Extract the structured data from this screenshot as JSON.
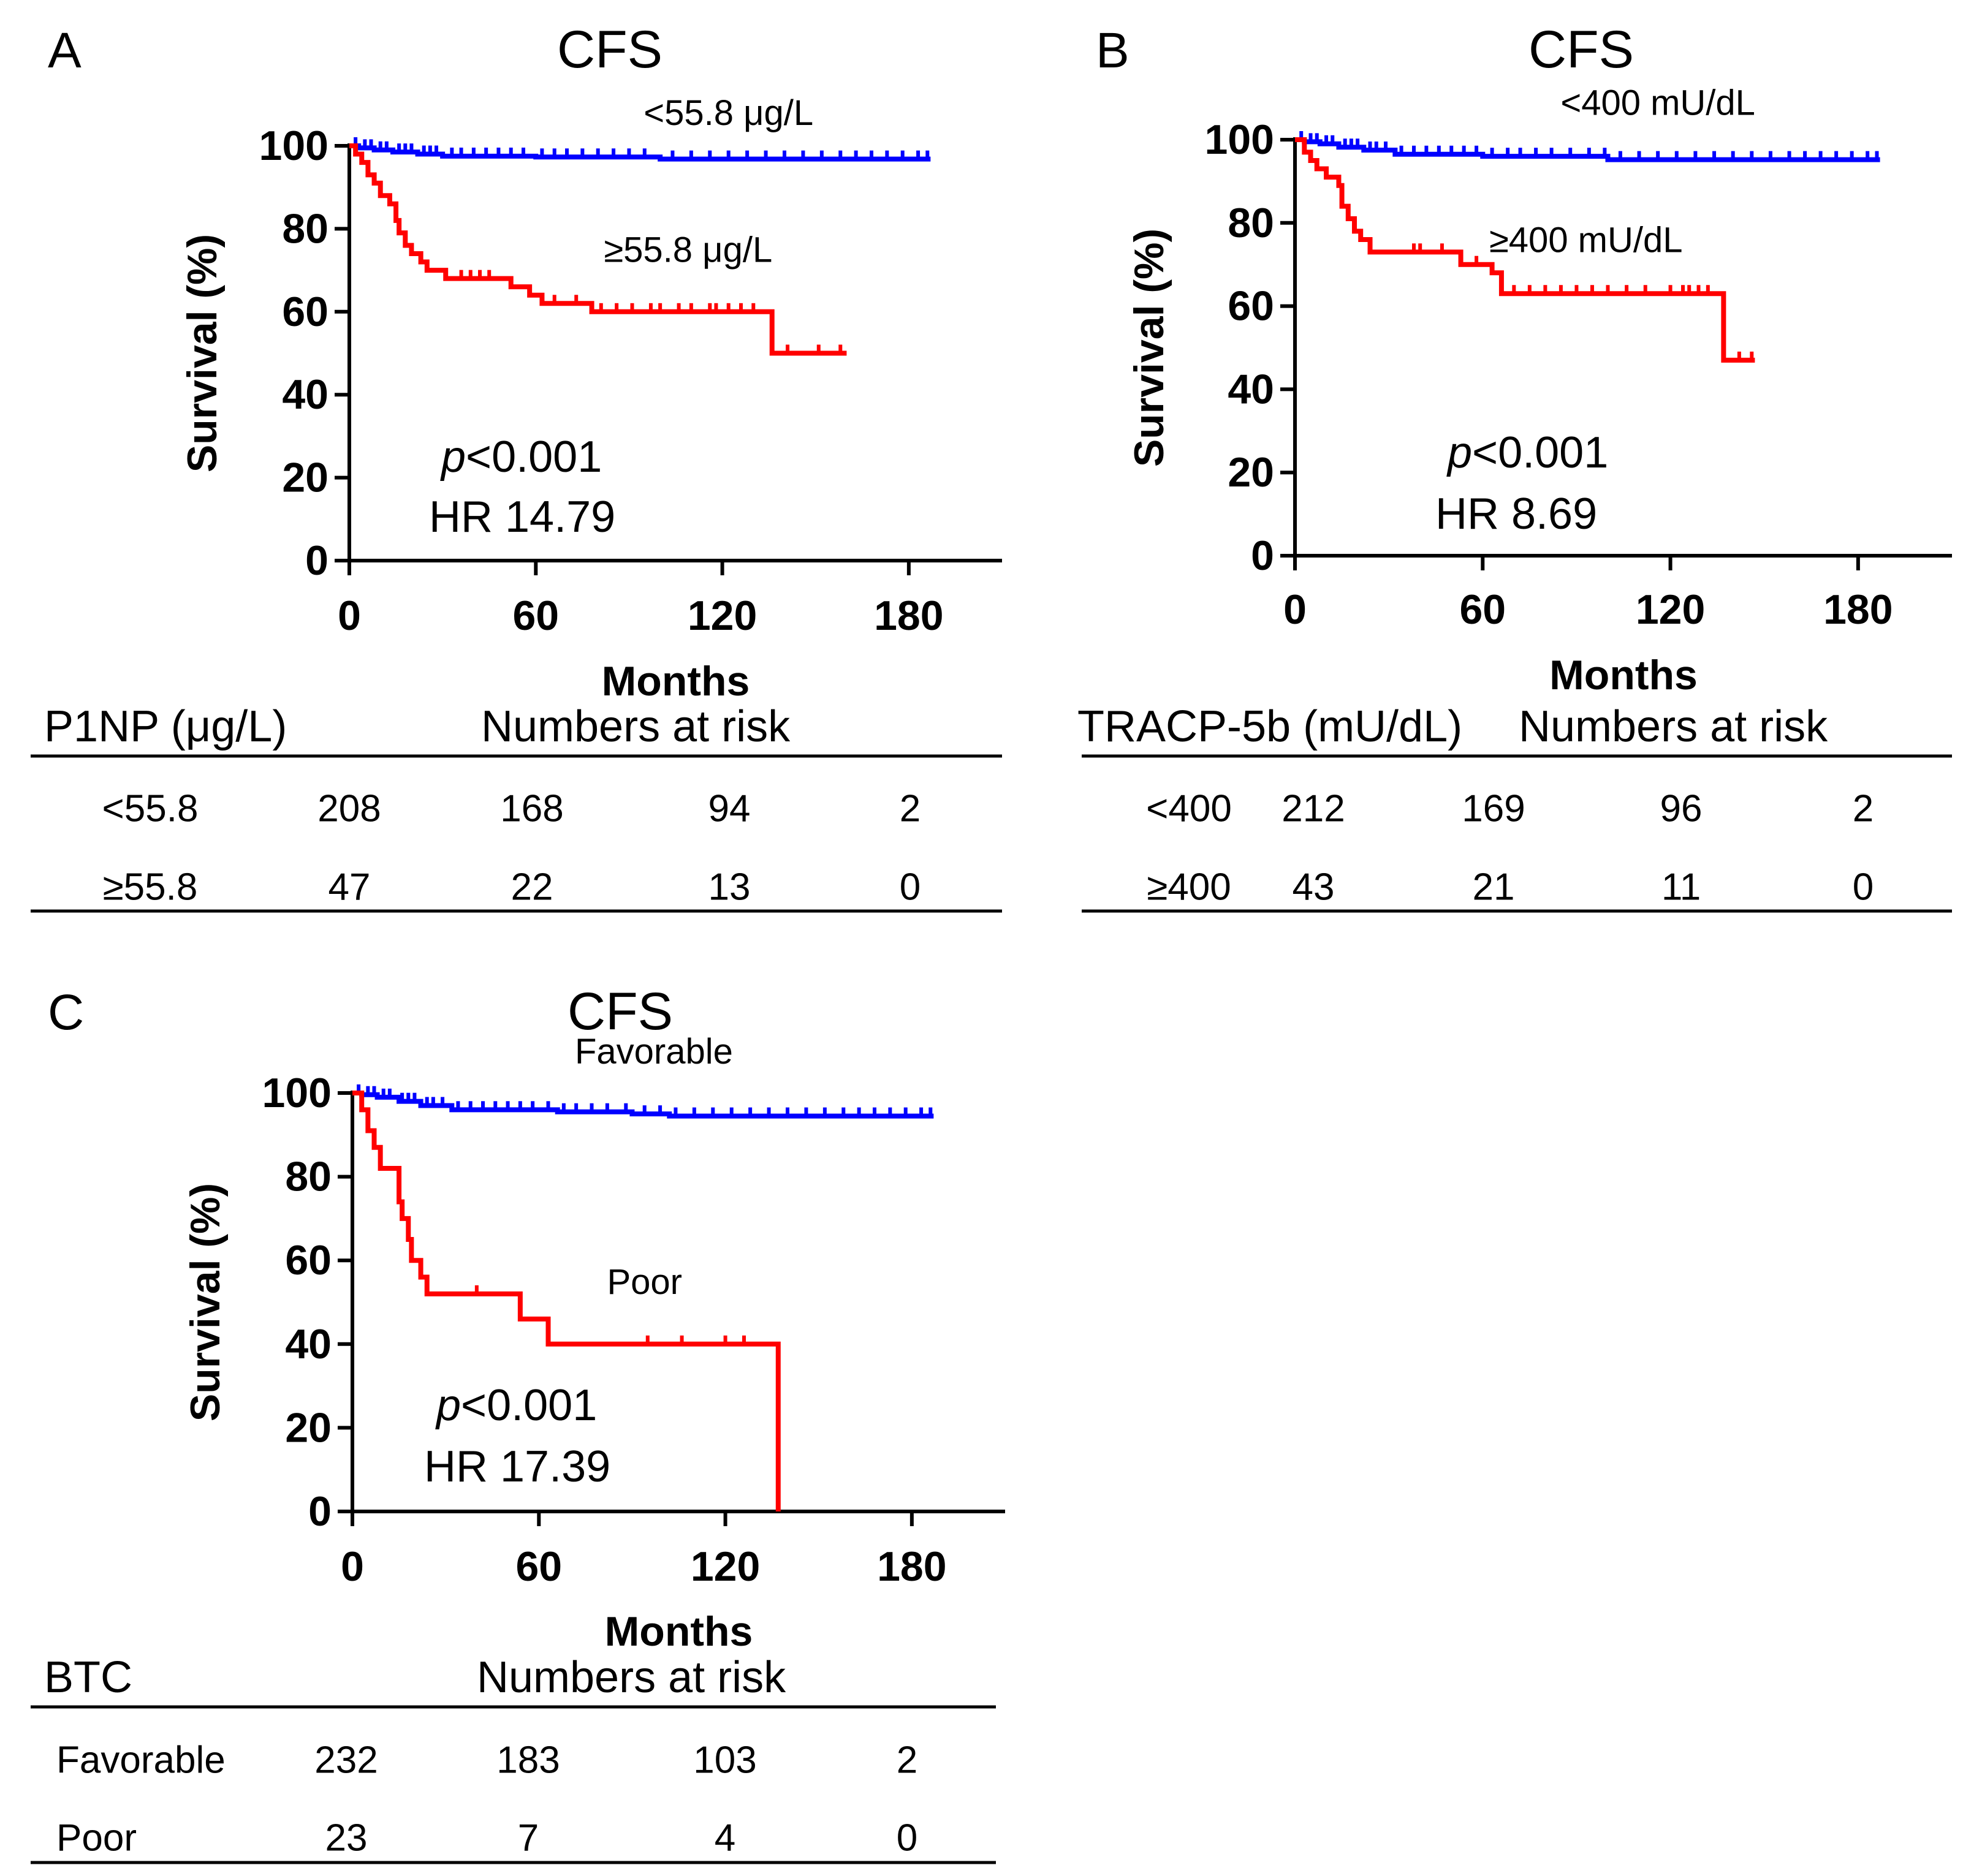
{
  "figure": {
    "background": "#ffffff",
    "line_color": "#000000"
  },
  "chart_data": [
    {
      "panel": "A",
      "type": "line",
      "subtype": "kaplan-meier",
      "title": "CFS",
      "xlabel": "Months",
      "ylabel": "Survival (%)",
      "xlim": [
        0,
        210
      ],
      "ylim": [
        0,
        100
      ],
      "xticks": [
        0,
        60,
        120,
        180
      ],
      "yticks": [
        0,
        20,
        40,
        60,
        80,
        100
      ],
      "pvalue": {
        "prefix": "p",
        "rest": "<0.001"
      },
      "hr": "HR 14.79",
      "series": [
        {
          "name": "<55.8 μg/L",
          "color": "#0000ff",
          "label_anchor": [
            122,
            105
          ],
          "steps": [
            [
              0,
              100
            ],
            [
              3,
              99.5
            ],
            [
              8,
              99
            ],
            [
              14,
              98.5
            ],
            [
              22,
              98
            ],
            [
              30,
              97.5
            ],
            [
              60,
              97.3
            ],
            [
              100,
              96.8
            ],
            [
              187,
              96.8
            ]
          ],
          "censored": [
            2,
            5,
            7,
            10,
            12,
            16,
            18,
            20,
            24,
            26,
            28,
            33,
            36,
            40,
            44,
            48,
            52,
            56,
            62,
            66,
            70,
            75,
            80,
            85,
            90,
            95,
            104,
            110,
            116,
            122,
            128,
            134,
            140,
            146,
            152,
            158,
            163,
            168,
            173,
            178,
            183,
            186
          ]
        },
        {
          "name": "≥55.8 μg/L",
          "color": "#ff0000",
          "label_anchor": [
            109,
            72
          ],
          "steps": [
            [
              0,
              100
            ],
            [
              2,
              98
            ],
            [
              4,
              96
            ],
            [
              6,
              93
            ],
            [
              8,
              91
            ],
            [
              10,
              88
            ],
            [
              13,
              86
            ],
            [
              15,
              82
            ],
            [
              16,
              79
            ],
            [
              18,
              76
            ],
            [
              20,
              74
            ],
            [
              23,
              72
            ],
            [
              25,
              70
            ],
            [
              31,
              68
            ],
            [
              52,
              66
            ],
            [
              58,
              64
            ],
            [
              62,
              62
            ],
            [
              78,
              60
            ],
            [
              136,
              60
            ],
            [
              136,
              50
            ],
            [
              160,
              50
            ]
          ],
          "censored": [
            36,
            39,
            42,
            45,
            52,
            66,
            73,
            81,
            86,
            91,
            97,
            100,
            106,
            110,
            116,
            118,
            122,
            126,
            130,
            141,
            151,
            158
          ]
        }
      ],
      "risk_table": {
        "group_header": "P1NP (μg/L)",
        "header": "Numbers at risk",
        "rows": [
          {
            "label": "<55.8",
            "values": [
              "208",
              "168",
              "94",
              "2"
            ]
          },
          {
            "label": "≥55.8",
            "values": [
              "47",
              "22",
              "13",
              "0"
            ]
          }
        ]
      }
    },
    {
      "panel": "B",
      "type": "line",
      "subtype": "kaplan-meier",
      "title": "CFS",
      "xlabel": "Months",
      "ylabel": "Survival (%)",
      "xlim": [
        0,
        210
      ],
      "ylim": [
        0,
        100
      ],
      "xticks": [
        0,
        60,
        120,
        180
      ],
      "yticks": [
        0,
        20,
        40,
        60,
        80,
        100
      ],
      "pvalue": {
        "prefix": "p",
        "rest": "<0.001"
      },
      "hr": "HR 8.69",
      "series": [
        {
          "name": "<400 mU/dL",
          "color": "#0000ff",
          "label_anchor": [
            116,
            106
          ],
          "steps": [
            [
              0,
              100
            ],
            [
              3,
              99.5
            ],
            [
              8,
              99
            ],
            [
              14,
              98.2
            ],
            [
              22,
              97.5
            ],
            [
              32,
              96.5
            ],
            [
              60,
              96
            ],
            [
              100,
              95.2
            ],
            [
              187,
              95.2
            ]
          ],
          "censored": [
            2,
            5,
            7,
            10,
            12,
            16,
            18,
            20,
            24,
            26,
            29,
            34,
            38,
            42,
            46,
            50,
            54,
            58,
            63,
            68,
            72,
            77,
            82,
            88,
            94,
            99,
            104,
            110,
            116,
            122,
            128,
            134,
            140,
            146,
            152,
            158,
            163,
            168,
            173,
            178,
            183,
            186
          ]
        },
        {
          "name": "≥400 mU/dL",
          "color": "#ff0000",
          "label_anchor": [
            93,
            73
          ],
          "steps": [
            [
              0,
              100
            ],
            [
              3,
              97
            ],
            [
              5,
              95
            ],
            [
              7,
              93
            ],
            [
              10,
              91
            ],
            [
              14,
              89
            ],
            [
              15,
              84
            ],
            [
              17,
              81
            ],
            [
              19,
              78
            ],
            [
              21,
              76
            ],
            [
              24,
              73
            ],
            [
              52,
              73
            ],
            [
              53,
              70
            ],
            [
              60,
              70
            ],
            [
              63,
              68
            ],
            [
              66,
              63
            ],
            [
              136,
              63
            ],
            [
              137,
              47
            ],
            [
              147,
              47
            ]
          ],
          "censored": [
            38,
            40,
            47,
            58,
            70,
            75,
            80,
            85,
            90,
            95,
            100,
            106,
            112,
            120,
            124,
            126,
            129,
            132,
            142,
            146
          ]
        }
      ],
      "risk_table": {
        "group_header": "TRACP-5b (mU/dL)",
        "header": "Numbers at risk",
        "rows": [
          {
            "label": "<400",
            "values": [
              "212",
              "169",
              "96",
              "2"
            ]
          },
          {
            "label": "≥400",
            "values": [
              "43",
              "21",
              "11",
              "0"
            ]
          }
        ]
      }
    },
    {
      "panel": "C",
      "type": "line",
      "subtype": "kaplan-meier",
      "title": "CFS",
      "xlabel": "Months",
      "ylabel": "Survival (%)",
      "xlim": [
        0,
        210
      ],
      "ylim": [
        0,
        100
      ],
      "xticks": [
        0,
        60,
        120,
        180
      ],
      "yticks": [
        0,
        20,
        40,
        60,
        80,
        100
      ],
      "pvalue": {
        "prefix": "p",
        "rest": "<0.001"
      },
      "hr": "HR 17.39",
      "series": [
        {
          "name": "Favorable",
          "color": "#0000ff",
          "label_anchor": [
            97,
            107
          ],
          "steps": [
            [
              0,
              100
            ],
            [
              3,
              99.6
            ],
            [
              8,
              99
            ],
            [
              15,
              98
            ],
            [
              22,
              97
            ],
            [
              32,
              96
            ],
            [
              66,
              95.5
            ],
            [
              90,
              95
            ],
            [
              102,
              94.5
            ],
            [
              187,
              94.5
            ]
          ],
          "censored": [
            2,
            5,
            7,
            10,
            12,
            16,
            18,
            20,
            24,
            26,
            29,
            34,
            38,
            42,
            46,
            50,
            54,
            58,
            63,
            68,
            72,
            77,
            82,
            88,
            94,
            99,
            104,
            110,
            116,
            122,
            128,
            134,
            140,
            146,
            152,
            158,
            163,
            168,
            173,
            178,
            183,
            186
          ]
        },
        {
          "name": "Poor",
          "color": "#ff0000",
          "label_anchor": [
            94,
            52
          ],
          "steps": [
            [
              0,
              100
            ],
            [
              3,
              96
            ],
            [
              5,
              91
            ],
            [
              7,
              87
            ],
            [
              9,
              82
            ],
            [
              14,
              82
            ],
            [
              15,
              74
            ],
            [
              16,
              70
            ],
            [
              18,
              65
            ],
            [
              19,
              60
            ],
            [
              22,
              56
            ],
            [
              24,
              52
            ],
            [
              53,
              52
            ],
            [
              54,
              46
            ],
            [
              62,
              46
            ],
            [
              63,
              40
            ],
            [
              137,
              40
            ],
            [
              137,
              0
            ]
          ],
          "censored": [
            40,
            95,
            106,
            120,
            126
          ]
        }
      ],
      "risk_table": {
        "group_header": "BTC",
        "header": "Numbers at risk",
        "rows": [
          {
            "label": "Favorable",
            "values": [
              "232",
              "183",
              "103",
              "2"
            ]
          },
          {
            "label": "Poor",
            "values": [
              "23",
              "7",
              "4",
              "0"
            ]
          }
        ]
      }
    }
  ]
}
